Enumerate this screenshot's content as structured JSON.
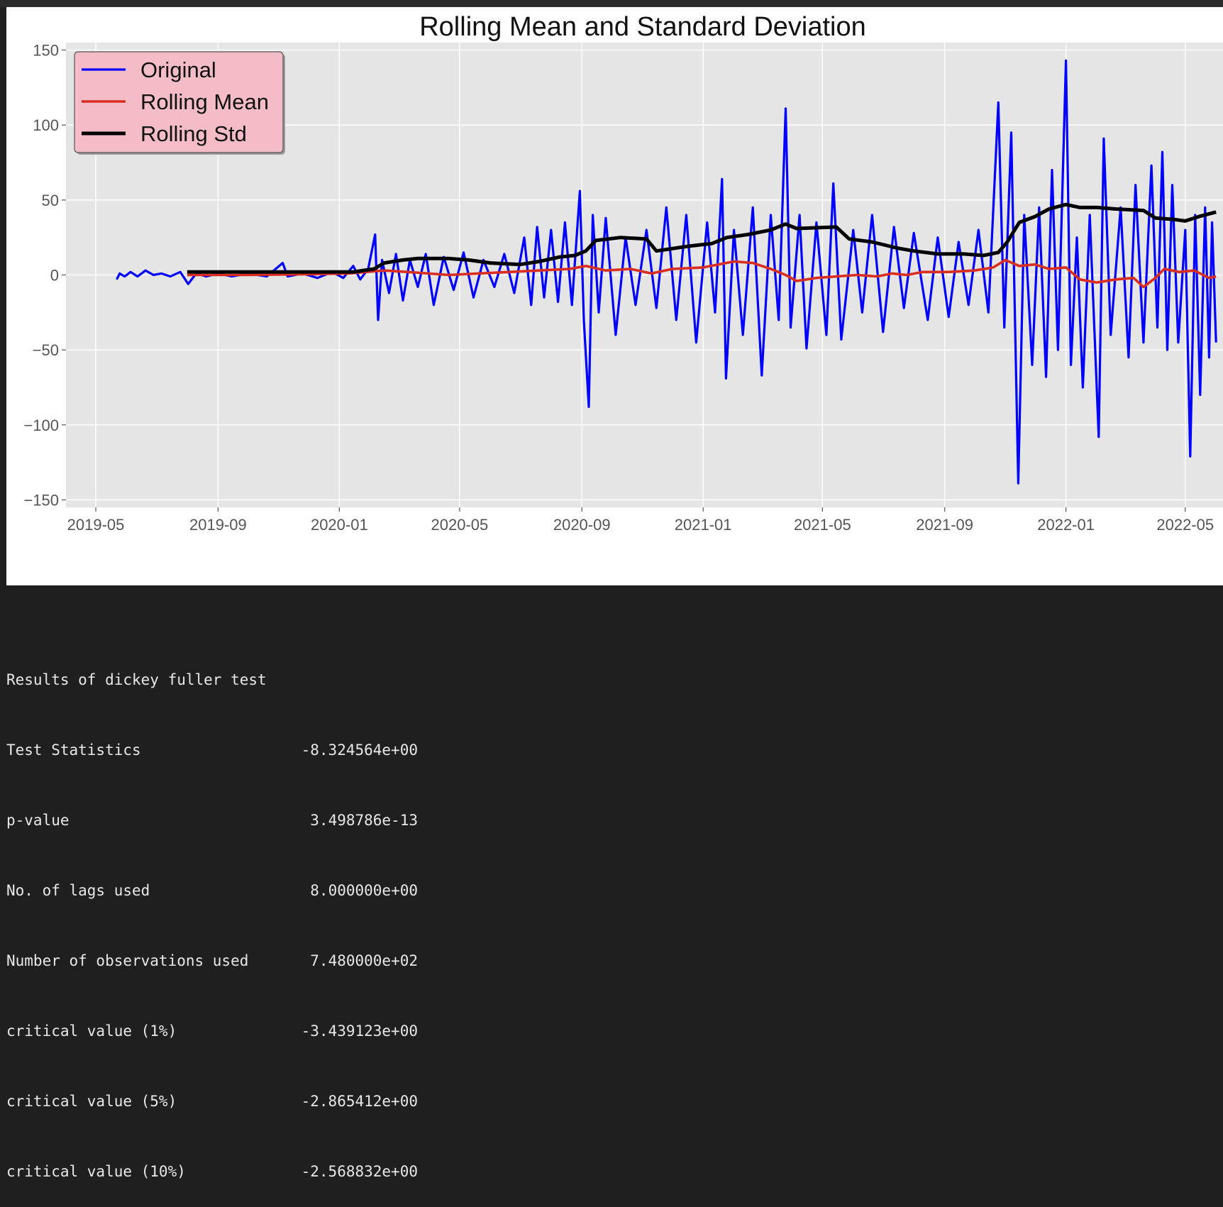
{
  "chart_data": {
    "type": "line",
    "title": "Rolling Mean and Standard Deviation",
    "xlabel": "",
    "ylabel": "",
    "x_range": [
      "2019-04-01",
      "2022-06-08"
    ],
    "ylim": [
      -155,
      155
    ],
    "x_ticks": [
      "2019-05",
      "2019-09",
      "2020-01",
      "2020-05",
      "2020-09",
      "2021-01",
      "2021-05",
      "2021-09",
      "2022-01",
      "2022-05"
    ],
    "y_ticks": [
      150,
      100,
      50,
      0,
      -50,
      -100,
      -150
    ],
    "y_tick_labels": [
      "150",
      "100",
      "50",
      "0",
      "−50",
      "−100",
      "−150"
    ],
    "grid": true,
    "legend_position": "top-left",
    "legend_bg": "#f4bcc6",
    "plot_bg": "#e5e5e5",
    "series": [
      {
        "name": "Original",
        "color": "#0000ff",
        "points": [
          [
            "2019-05-22",
            -3
          ],
          [
            "2019-05-25",
            1
          ],
          [
            "2019-05-30",
            -1
          ],
          [
            "2019-06-05",
            2
          ],
          [
            "2019-06-12",
            -1
          ],
          [
            "2019-06-20",
            3
          ],
          [
            "2019-06-28",
            0
          ],
          [
            "2019-07-06",
            1
          ],
          [
            "2019-07-15",
            -1
          ],
          [
            "2019-07-25",
            2
          ],
          [
            "2019-08-02",
            -6
          ],
          [
            "2019-08-10",
            1
          ],
          [
            "2019-08-20",
            -1
          ],
          [
            "2019-09-01",
            1
          ],
          [
            "2019-09-15",
            -1
          ],
          [
            "2019-10-01",
            1
          ],
          [
            "2019-10-20",
            -1
          ],
          [
            "2019-11-05",
            8
          ],
          [
            "2019-11-10",
            -1
          ],
          [
            "2019-11-25",
            1
          ],
          [
            "2019-12-10",
            -2
          ],
          [
            "2019-12-25",
            2
          ],
          [
            "2020-01-05",
            -2
          ],
          [
            "2020-01-15",
            6
          ],
          [
            "2020-01-22",
            -3
          ],
          [
            "2020-01-30",
            4
          ],
          [
            "2020-02-06",
            27
          ],
          [
            "2020-02-09",
            -30
          ],
          [
            "2020-02-13",
            10
          ],
          [
            "2020-02-20",
            -12
          ],
          [
            "2020-02-27",
            14
          ],
          [
            "2020-03-05",
            -17
          ],
          [
            "2020-03-12",
            10
          ],
          [
            "2020-03-20",
            -8
          ],
          [
            "2020-03-28",
            14
          ],
          [
            "2020-04-05",
            -20
          ],
          [
            "2020-04-15",
            12
          ],
          [
            "2020-04-25",
            -10
          ],
          [
            "2020-05-05",
            15
          ],
          [
            "2020-05-15",
            -15
          ],
          [
            "2020-05-25",
            10
          ],
          [
            "2020-06-05",
            -8
          ],
          [
            "2020-06-15",
            14
          ],
          [
            "2020-06-25",
            -12
          ],
          [
            "2020-07-05",
            25
          ],
          [
            "2020-07-12",
            -20
          ],
          [
            "2020-07-18",
            32
          ],
          [
            "2020-07-25",
            -15
          ],
          [
            "2020-08-01",
            30
          ],
          [
            "2020-08-08",
            -18
          ],
          [
            "2020-08-15",
            35
          ],
          [
            "2020-08-22",
            -20
          ],
          [
            "2020-08-30",
            56
          ],
          [
            "2020-09-03",
            -30
          ],
          [
            "2020-09-08",
            -88
          ],
          [
            "2020-09-12",
            40
          ],
          [
            "2020-09-18",
            -25
          ],
          [
            "2020-09-25",
            38
          ],
          [
            "2020-10-05",
            -40
          ],
          [
            "2020-10-15",
            25
          ],
          [
            "2020-10-25",
            -20
          ],
          [
            "2020-11-05",
            30
          ],
          [
            "2020-11-15",
            -22
          ],
          [
            "2020-11-25",
            45
          ],
          [
            "2020-12-05",
            -30
          ],
          [
            "2020-12-15",
            40
          ],
          [
            "2020-12-25",
            -45
          ],
          [
            "2021-01-05",
            35
          ],
          [
            "2021-01-13",
            -25
          ],
          [
            "2021-01-20",
            64
          ],
          [
            "2021-01-24",
            -69
          ],
          [
            "2021-02-01",
            30
          ],
          [
            "2021-02-10",
            -40
          ],
          [
            "2021-02-20",
            45
          ],
          [
            "2021-03-01",
            -67
          ],
          [
            "2021-03-10",
            40
          ],
          [
            "2021-03-18",
            -30
          ],
          [
            "2021-03-25",
            111
          ],
          [
            "2021-03-30",
            -35
          ],
          [
            "2021-04-08",
            40
          ],
          [
            "2021-04-15",
            -49
          ],
          [
            "2021-04-25",
            35
          ],
          [
            "2021-05-05",
            -40
          ],
          [
            "2021-05-12",
            61
          ],
          [
            "2021-05-20",
            -43
          ],
          [
            "2021-06-01",
            30
          ],
          [
            "2021-06-10",
            -25
          ],
          [
            "2021-06-20",
            40
          ],
          [
            "2021-07-01",
            -38
          ],
          [
            "2021-07-12",
            32
          ],
          [
            "2021-07-22",
            -22
          ],
          [
            "2021-08-01",
            28
          ],
          [
            "2021-08-15",
            -30
          ],
          [
            "2021-08-25",
            25
          ],
          [
            "2021-09-05",
            -28
          ],
          [
            "2021-09-15",
            22
          ],
          [
            "2021-09-25",
            -20
          ],
          [
            "2021-10-05",
            30
          ],
          [
            "2021-10-15",
            -25
          ],
          [
            "2021-10-25",
            115
          ],
          [
            "2021-10-31",
            -35
          ],
          [
            "2021-11-07",
            95
          ],
          [
            "2021-11-14",
            -139
          ],
          [
            "2021-11-20",
            40
          ],
          [
            "2021-11-28",
            -60
          ],
          [
            "2021-12-05",
            45
          ],
          [
            "2021-12-12",
            -68
          ],
          [
            "2021-12-18",
            70
          ],
          [
            "2021-12-24",
            -50
          ],
          [
            "2022-01-01",
            143
          ],
          [
            "2022-01-06",
            -60
          ],
          [
            "2022-01-12",
            25
          ],
          [
            "2022-01-18",
            -75
          ],
          [
            "2022-01-25",
            40
          ],
          [
            "2022-02-03",
            -108
          ],
          [
            "2022-02-08",
            91
          ],
          [
            "2022-02-15",
            -40
          ],
          [
            "2022-02-25",
            45
          ],
          [
            "2022-03-05",
            -55
          ],
          [
            "2022-03-12",
            60
          ],
          [
            "2022-03-20",
            -45
          ],
          [
            "2022-03-28",
            73
          ],
          [
            "2022-04-03",
            -35
          ],
          [
            "2022-04-08",
            82
          ],
          [
            "2022-04-13",
            -50
          ],
          [
            "2022-04-18",
            60
          ],
          [
            "2022-04-24",
            -45
          ],
          [
            "2022-05-01",
            30
          ],
          [
            "2022-05-06",
            -121
          ],
          [
            "2022-05-11",
            40
          ],
          [
            "2022-05-16",
            -80
          ],
          [
            "2022-05-21",
            45
          ],
          [
            "2022-05-25",
            -55
          ],
          [
            "2022-05-28",
            35
          ],
          [
            "2022-06-01",
            -45
          ]
        ]
      },
      {
        "name": "Rolling Mean",
        "color": "#d92d20",
        "points": [
          [
            "2019-08-01",
            0
          ],
          [
            "2019-10-01",
            0
          ],
          [
            "2019-12-01",
            0.5
          ],
          [
            "2020-01-10",
            1
          ],
          [
            "2020-02-15",
            3
          ],
          [
            "2020-03-10",
            2
          ],
          [
            "2020-04-20",
            0
          ],
          [
            "2020-05-20",
            1
          ],
          [
            "2020-06-20",
            2
          ],
          [
            "2020-07-20",
            3
          ],
          [
            "2020-08-20",
            4
          ],
          [
            "2020-09-05",
            6
          ],
          [
            "2020-09-25",
            3
          ],
          [
            "2020-10-20",
            4
          ],
          [
            "2020-11-10",
            1
          ],
          [
            "2020-12-01",
            4
          ],
          [
            "2021-01-01",
            5
          ],
          [
            "2021-02-01",
            9
          ],
          [
            "2021-02-20",
            8
          ],
          [
            "2021-03-10",
            4
          ],
          [
            "2021-03-25",
            0
          ],
          [
            "2021-04-05",
            -4
          ],
          [
            "2021-04-25",
            -2
          ],
          [
            "2021-05-15",
            -1
          ],
          [
            "2021-06-05",
            0
          ],
          [
            "2021-06-25",
            -1
          ],
          [
            "2021-07-10",
            1
          ],
          [
            "2021-07-25",
            0
          ],
          [
            "2021-08-10",
            2
          ],
          [
            "2021-09-05",
            2
          ],
          [
            "2021-10-01",
            3
          ],
          [
            "2021-10-20",
            5
          ],
          [
            "2021-11-01",
            10
          ],
          [
            "2021-11-15",
            6
          ],
          [
            "2021-12-01",
            7
          ],
          [
            "2021-12-15",
            4
          ],
          [
            "2022-01-01",
            5
          ],
          [
            "2022-01-15",
            -3
          ],
          [
            "2022-02-01",
            -5
          ],
          [
            "2022-02-20",
            -3
          ],
          [
            "2022-03-10",
            -2
          ],
          [
            "2022-03-20",
            -8
          ],
          [
            "2022-04-01",
            -2
          ],
          [
            "2022-04-10",
            4
          ],
          [
            "2022-04-25",
            2
          ],
          [
            "2022-05-10",
            3
          ],
          [
            "2022-05-25",
            -2
          ],
          [
            "2022-06-01",
            -1
          ]
        ]
      },
      {
        "name": "Rolling Std",
        "color": "#000000",
        "points": [
          [
            "2019-08-01",
            2
          ],
          [
            "2019-10-01",
            2
          ],
          [
            "2019-12-01",
            2
          ],
          [
            "2020-01-15",
            2
          ],
          [
            "2020-02-05",
            4
          ],
          [
            "2020-02-15",
            8
          ],
          [
            "2020-03-05",
            10
          ],
          [
            "2020-03-20",
            11
          ],
          [
            "2020-04-20",
            11
          ],
          [
            "2020-05-10",
            10
          ],
          [
            "2020-06-01",
            8
          ],
          [
            "2020-07-01",
            7
          ],
          [
            "2020-07-20",
            9
          ],
          [
            "2020-08-10",
            12
          ],
          [
            "2020-08-25",
            13
          ],
          [
            "2020-09-05",
            16
          ],
          [
            "2020-09-15",
            23
          ],
          [
            "2020-10-10",
            25
          ],
          [
            "2020-11-05",
            24
          ],
          [
            "2020-11-15",
            16
          ],
          [
            "2020-12-15",
            19
          ],
          [
            "2021-01-10",
            21
          ],
          [
            "2021-01-25",
            25
          ],
          [
            "2021-02-15",
            27
          ],
          [
            "2021-03-10",
            30
          ],
          [
            "2021-03-25",
            34
          ],
          [
            "2021-04-05",
            31
          ],
          [
            "2021-05-15",
            32
          ],
          [
            "2021-05-28",
            24
          ],
          [
            "2021-06-20",
            22
          ],
          [
            "2021-07-15",
            18
          ],
          [
            "2021-08-01",
            16
          ],
          [
            "2021-08-25",
            14
          ],
          [
            "2021-09-20",
            14
          ],
          [
            "2021-10-10",
            13
          ],
          [
            "2021-10-25",
            15
          ],
          [
            "2021-11-03",
            22
          ],
          [
            "2021-11-15",
            35
          ],
          [
            "2021-12-01",
            39
          ],
          [
            "2021-12-15",
            44
          ],
          [
            "2022-01-01",
            47
          ],
          [
            "2022-01-15",
            45
          ],
          [
            "2022-02-01",
            45
          ],
          [
            "2022-02-20",
            44
          ],
          [
            "2022-03-20",
            43
          ],
          [
            "2022-04-01",
            38
          ],
          [
            "2022-04-20",
            37
          ],
          [
            "2022-05-01",
            36
          ],
          [
            "2022-05-15",
            39
          ],
          [
            "2022-06-01",
            42
          ]
        ]
      }
    ]
  },
  "output": {
    "heading": "Results of dickey fuller test",
    "rows": [
      {
        "label": "Test Statistics",
        "value": "-8.324564e+00"
      },
      {
        "label": "p-value",
        "value": "3.498786e-13"
      },
      {
        "label": "No. of lags used",
        "value": "8.000000e+00"
      },
      {
        "label": "Number of observations used",
        "value": "7.480000e+02"
      },
      {
        "label": "critical value (1%)",
        "value": "-3.439123e+00"
      },
      {
        "label": "critical value (5%)",
        "value": "-2.865412e+00"
      },
      {
        "label": "critical value (10%)",
        "value": "-2.568832e+00"
      }
    ]
  }
}
